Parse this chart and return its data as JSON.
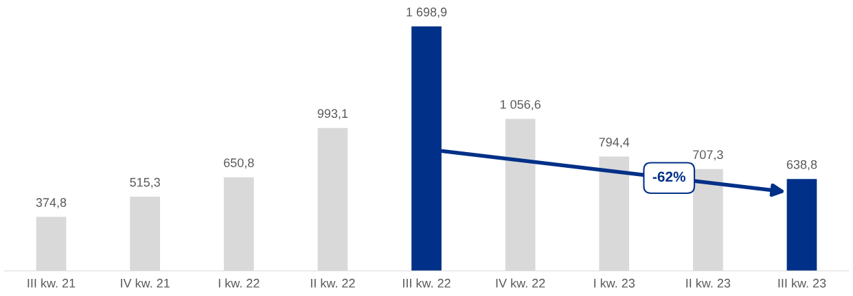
{
  "chart_data": {
    "type": "bar",
    "categories": [
      "III kw. 21",
      "IV kw. 21",
      "I kw. 22",
      "II kw. 22",
      "III kw. 22",
      "IV kw. 22",
      "I kw. 23",
      "II kw. 23",
      "III kw. 23"
    ],
    "values": [
      374.8,
      515.3,
      650.8,
      993.1,
      1698.9,
      1056.6,
      794.4,
      707.3,
      638.8
    ],
    "colors": [
      "#d9d9d9",
      "#d9d9d9",
      "#d9d9d9",
      "#d9d9d9",
      "#003087",
      "#d9d9d9",
      "#d9d9d9",
      "#d9d9d9",
      "#003087"
    ],
    "value_labels": [
      "374,8",
      "515,3",
      "650,8",
      "993,1",
      "1 698,9",
      "1 056,6",
      "794,4",
      "707,3",
      "638,8"
    ],
    "annotations": [
      "-62%"
    ],
    "grid": false,
    "legend": false
  }
}
